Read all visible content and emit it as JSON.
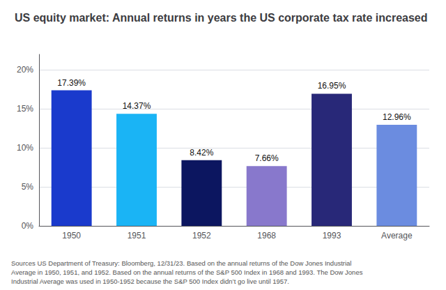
{
  "chart_data": {
    "type": "bar",
    "title": "US equity market: Annual returns in years the US corporate tax rate increased",
    "categories": [
      "1950",
      "1951",
      "1952",
      "1968",
      "1993",
      "Average"
    ],
    "values": [
      17.39,
      14.37,
      8.42,
      7.66,
      16.95,
      12.96
    ],
    "value_labels": [
      "17.39%",
      "14.37%",
      "8.42%",
      "7.66%",
      "16.95%",
      "12.96%"
    ],
    "data_labels": true,
    "colors": [
      "#1a3acc",
      "#1ab4f5",
      "#0c1660",
      "#8878cc",
      "#282878",
      "#6b8ce0"
    ],
    "ylim": [
      0,
      22
    ],
    "yticks": [
      {
        "value": 0,
        "label": "0%"
      },
      {
        "value": 5,
        "label": "5%"
      },
      {
        "value": 10,
        "label": "10%"
      },
      {
        "value": 15,
        "label": "15%"
      },
      {
        "value": 20,
        "label": "20%"
      }
    ],
    "grid": true,
    "annotations": [
      "Sources US Department of Treasury: Bloomberg, 12/31/23. Based on the annual returns of the Dow Jones Industrial Average in 1950, 1951, and 1952. Based on the annual returns of the S&P 500 Index in 1968 and 1993. The Dow Jones Industrial Average was used in 1950-1952 because the S&P 500 Index didn’t go live until 1957."
    ]
  }
}
